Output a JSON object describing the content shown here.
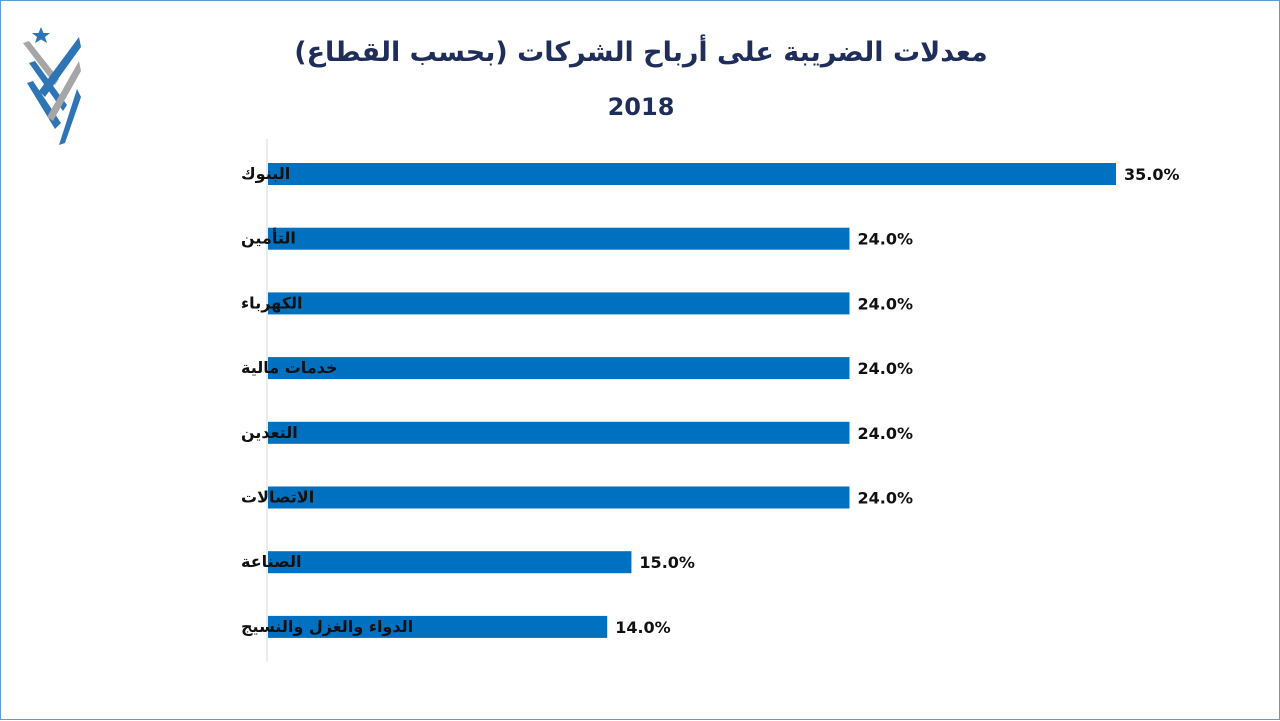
{
  "colors": {
    "bar": "#0070c0",
    "title": "#1f2d5a",
    "axis": "#d9d9d9",
    "border": "#5b9bd5",
    "logo_blue": "#2e75b6",
    "logo_gray": "#a6a6a6",
    "logo_star": "#2e75b6"
  },
  "logo": {
    "icon": "emblem-logo"
  },
  "chart_data": {
    "type": "bar",
    "orientation": "horizontal",
    "title": "معدلات الضريبة على أرباح الشركات (بحسب القطاع)",
    "subtitle": "2018",
    "categories": [
      "البنوك",
      "التأمين",
      "الكهرباء",
      "خدمات مالية",
      "التعدين",
      "الاتصالات",
      "الصناعة",
      "الدواء والغزل والنسيج"
    ],
    "values": [
      35.0,
      24.0,
      24.0,
      24.0,
      24.0,
      24.0,
      15.0,
      14.0
    ],
    "value_labels": [
      "35.0%",
      "24.0%",
      "24.0%",
      "24.0%",
      "24.0%",
      "24.0%",
      "15.0%",
      "14.0%"
    ],
    "unit": "%",
    "xlim": [
      0,
      35
    ],
    "grid": false,
    "legend": "none",
    "data_labels": true
  }
}
